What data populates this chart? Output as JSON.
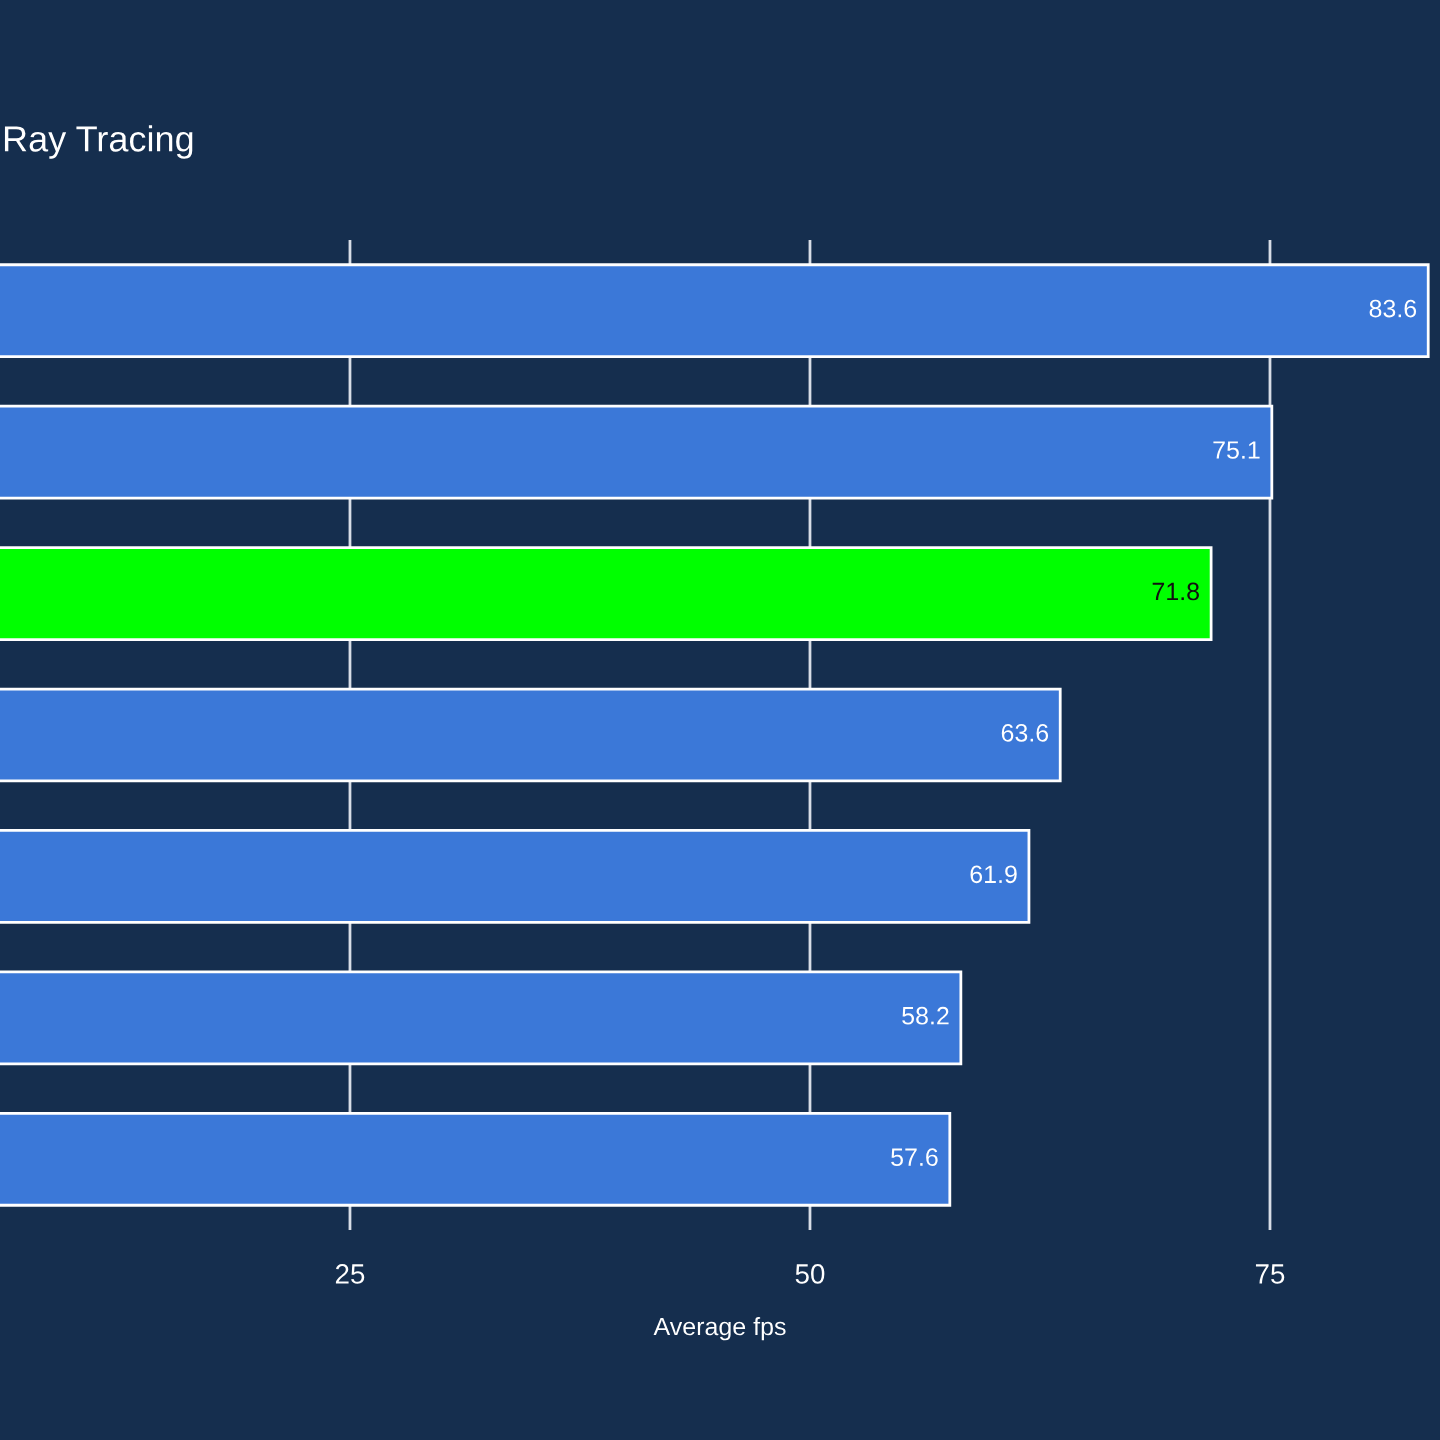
{
  "chart_data": {
    "type": "bar",
    "orientation": "horizontal",
    "title": "Ray Tracing",
    "xlabel": "Average fps",
    "categories": [
      null,
      null,
      null,
      null,
      null,
      null,
      null
    ],
    "values": [
      83.6,
      75.1,
      71.8,
      63.6,
      61.9,
      58.2,
      57.6
    ],
    "colors": [
      "#3b78d8",
      "#3b78d8",
      "#00ff00",
      "#3b78d8",
      "#3b78d8",
      "#3b78d8",
      "#3b78d8"
    ],
    "xlim": [
      5.98,
      84.24
    ],
    "xticks": [
      25,
      50,
      75
    ],
    "grid": "x",
    "data_labels": true,
    "tick_labels": "x"
  }
}
